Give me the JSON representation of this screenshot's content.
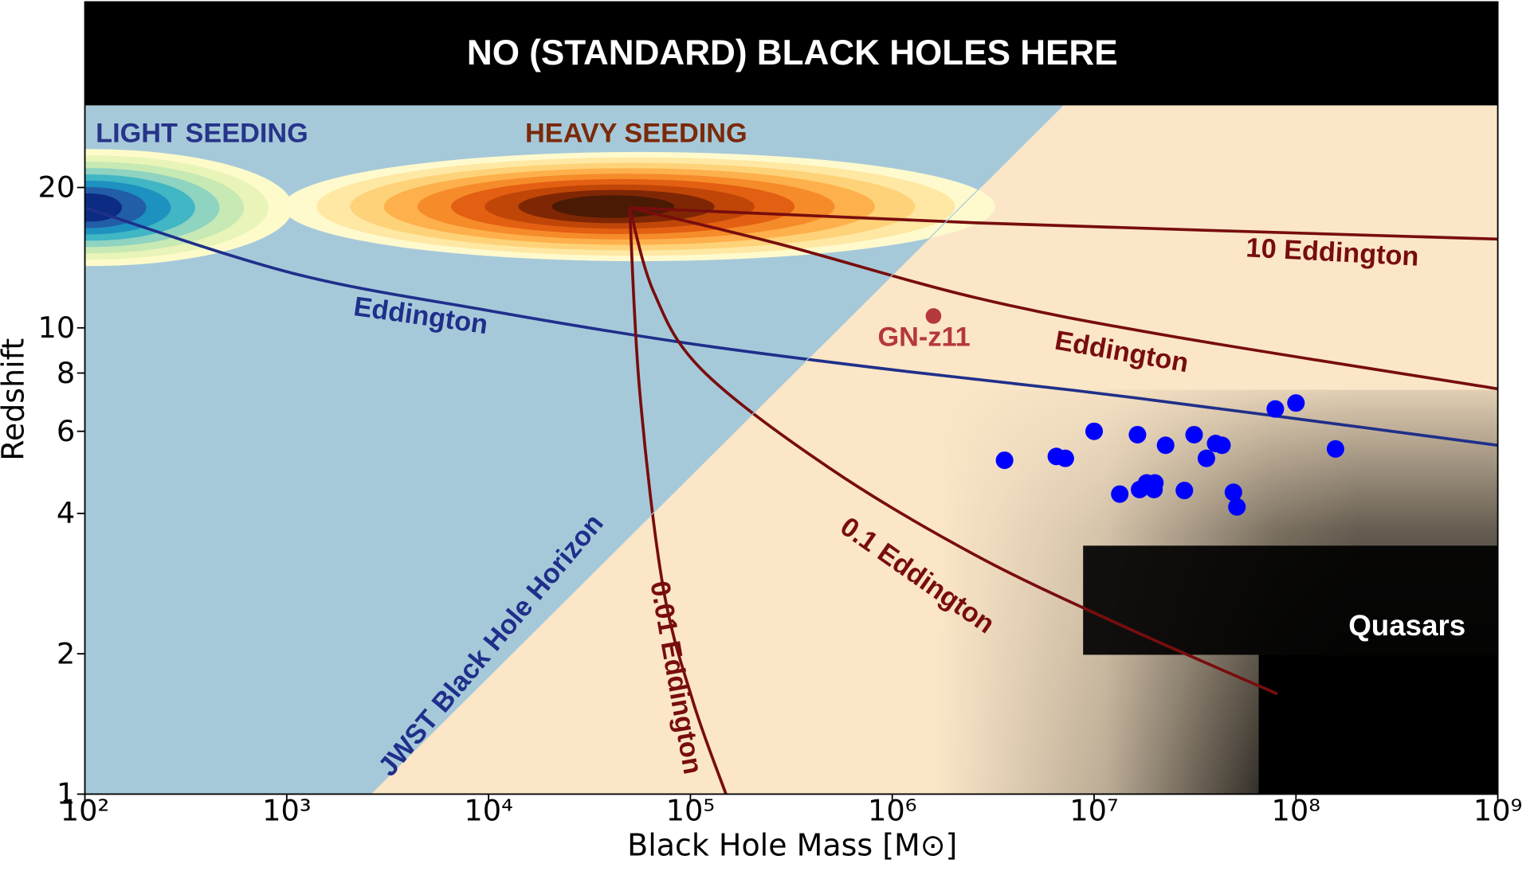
{
  "chart_data": {
    "type": "line",
    "xlabel": "Black Hole Mass [M⊙]",
    "ylabel": "Redshift",
    "xscale": "log",
    "yscale": "log",
    "xlim": [
      100,
      1000000000
    ],
    "ylim": [
      1,
      50
    ],
    "xticks": [
      {
        "value": 100,
        "label": "10²"
      },
      {
        "value": 1000,
        "label": "10³"
      },
      {
        "value": 10000,
        "label": "10⁴"
      },
      {
        "value": 100000,
        "label": "10⁵"
      },
      {
        "value": 1000000,
        "label": "10⁶"
      },
      {
        "value": 10000000,
        "label": "10⁷"
      },
      {
        "value": 100000000,
        "label": "10⁸"
      },
      {
        "value": 1000000000,
        "label": "10⁹"
      }
    ],
    "yticks": [
      1,
      2,
      4,
      6,
      8,
      10,
      20
    ],
    "annotations": [
      "NO (STANDARD) BLACK HOLES HERE",
      "LIGHT SEEDING",
      "HEAVY SEEDING",
      "Quasars"
    ],
    "series": [
      {
        "name": "Eddington",
        "type": "line",
        "color": "#1f2f8a",
        "x": [
          100,
          1070,
          9900,
          92000,
          850000,
          7900000,
          73000000,
          1000000000
        ],
        "y": [
          18.1,
          13.1,
          10.9,
          9.3,
          8.2,
          7.35,
          6.5,
          5.6
        ]
      },
      {
        "name": "10 Eddington",
        "type": "line",
        "color": "#780d0d",
        "x": [
          50000,
          2600000,
          1000000000
        ],
        "y": [
          18.1,
          16.8,
          15.5
        ]
      },
      {
        "name": "Eddington",
        "type": "line",
        "color": "#780d0d",
        "x": [
          50000,
          280000,
          2600000,
          24000000,
          1000000000
        ],
        "y": [
          18.1,
          15.1,
          11.6,
          9.6,
          7.4
        ]
      },
      {
        "name": "0.1 Eddington",
        "type": "line",
        "color": "#780d0d",
        "x": [
          50000,
          66000,
          115000,
          490000,
          2600000,
          13700000,
          81000000
        ],
        "y": [
          18.1,
          11.9,
          8.1,
          5.0,
          3.25,
          2.3,
          1.64
        ]
      },
      {
        "name": "0.01 Eddington",
        "type": "line",
        "color": "#780d0d",
        "x": [
          50000,
          56000,
          73000,
          103000,
          150000
        ],
        "y": [
          18.1,
          7.35,
          2.8,
          1.58,
          1
        ]
      },
      {
        "name": "JWST Black Hole Horizon",
        "type": "boundary",
        "color": "#a6c9da",
        "x": [
          2600,
          7000000
        ],
        "y": [
          1,
          30
        ]
      },
      {
        "type": "scatter",
        "color": "#0000ff",
        "x": [
          3600000,
          6500000,
          7200000,
          10000000,
          13400000,
          16400000,
          16800000,
          18200000,
          19800000,
          20000000,
          22600000,
          28000000,
          31300000,
          36000000,
          40000000,
          43000000,
          49000000,
          51000000,
          79000000,
          100000000,
          157000000
        ],
        "y": [
          5.2,
          5.3,
          5.25,
          6.0,
          4.4,
          5.9,
          4.5,
          4.65,
          4.5,
          4.65,
          5.6,
          4.48,
          5.9,
          5.25,
          5.65,
          5.6,
          4.44,
          4.13,
          6.7,
          6.9,
          5.5
        ]
      },
      {
        "name": "GN-z11",
        "type": "scatter",
        "color": "#b5383c",
        "x": [
          1600000
        ],
        "y": [
          10.6
        ]
      }
    ]
  }
}
